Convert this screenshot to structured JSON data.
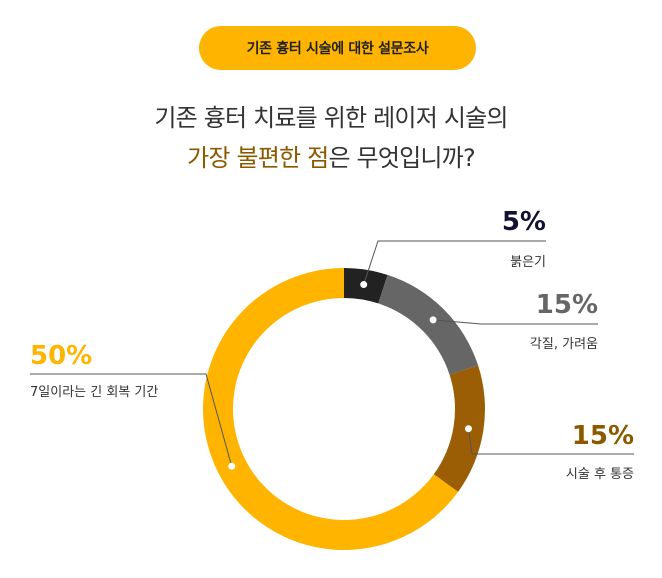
{
  "badge": "기존 흉터 시술에 대한 설문조사",
  "title": {
    "line1": "기존 흉터 치료를 위한 레이저 시술의",
    "line2_highlight": "가장 불편한 점",
    "line2_rest": "은 무엇입니까?"
  },
  "colors": {
    "accent": "#FFB400",
    "highlight_text": "#8B5A00"
  },
  "chart_data": {
    "type": "pie",
    "donut": true,
    "series": [
      {
        "name": "붉은기",
        "value": 5,
        "label": "5%",
        "color": "#222222"
      },
      {
        "name": "각질, 가려움",
        "value": 15,
        "label": "15%",
        "color": "#666666"
      },
      {
        "name": "시술 후 통증",
        "value": 15,
        "label": "15%",
        "color": "#9B5E05"
      },
      {
        "name": "7일이라는 긴 회복 기간",
        "value": 50,
        "label": "50%",
        "color": "#FFB400"
      }
    ]
  }
}
